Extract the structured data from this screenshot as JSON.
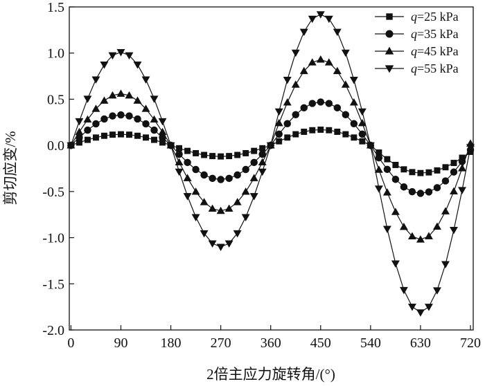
{
  "chart_data": {
    "type": "line",
    "xlabel": "2倍主应力旋转角/(°)",
    "ylabel": "剪切应变/%",
    "xlim": [
      -3,
      725
    ],
    "ylim": [
      -2.0,
      1.5
    ],
    "x_ticks": [
      "0",
      "90",
      "180",
      "270",
      "360",
      "450",
      "540",
      "630",
      "720"
    ],
    "y_ticks": [
      "1.5",
      "1.0",
      "0.5",
      "0.0",
      "-0.5",
      "-1.0",
      "-1.5",
      "-2.0"
    ],
    "legend_position": "top-right",
    "grid": false,
    "sample_step_deg": 15,
    "series": [
      {
        "name": "q=25 kPa",
        "legend_var": "q",
        "legend_rest": "=25 kPa",
        "marker": "square",
        "amplitudes": [
          0.12,
          -0.12,
          0.17,
          -0.3
        ],
        "end_value": -0.07
      },
      {
        "name": "q=35 kPa",
        "legend_var": "q",
        "legend_rest": "=35 kPa",
        "marker": "circle",
        "amplitudes": [
          0.33,
          -0.37,
          0.47,
          -0.52
        ],
        "end_value": -0.05
      },
      {
        "name": "q=45 kPa",
        "legend_var": "q",
        "legend_rest": "=45 kPa",
        "marker": "triangle-up",
        "amplitudes": [
          0.56,
          -0.71,
          0.93,
          -1.02
        ],
        "end_value": 0.02
      },
      {
        "name": "q=55 kPa",
        "legend_var": "q",
        "legend_rest": "=55 kPa",
        "marker": "triangle-down",
        "amplitudes": [
          1.01,
          -1.1,
          1.42,
          -1.81
        ],
        "end_value": -0.02
      }
    ]
  }
}
